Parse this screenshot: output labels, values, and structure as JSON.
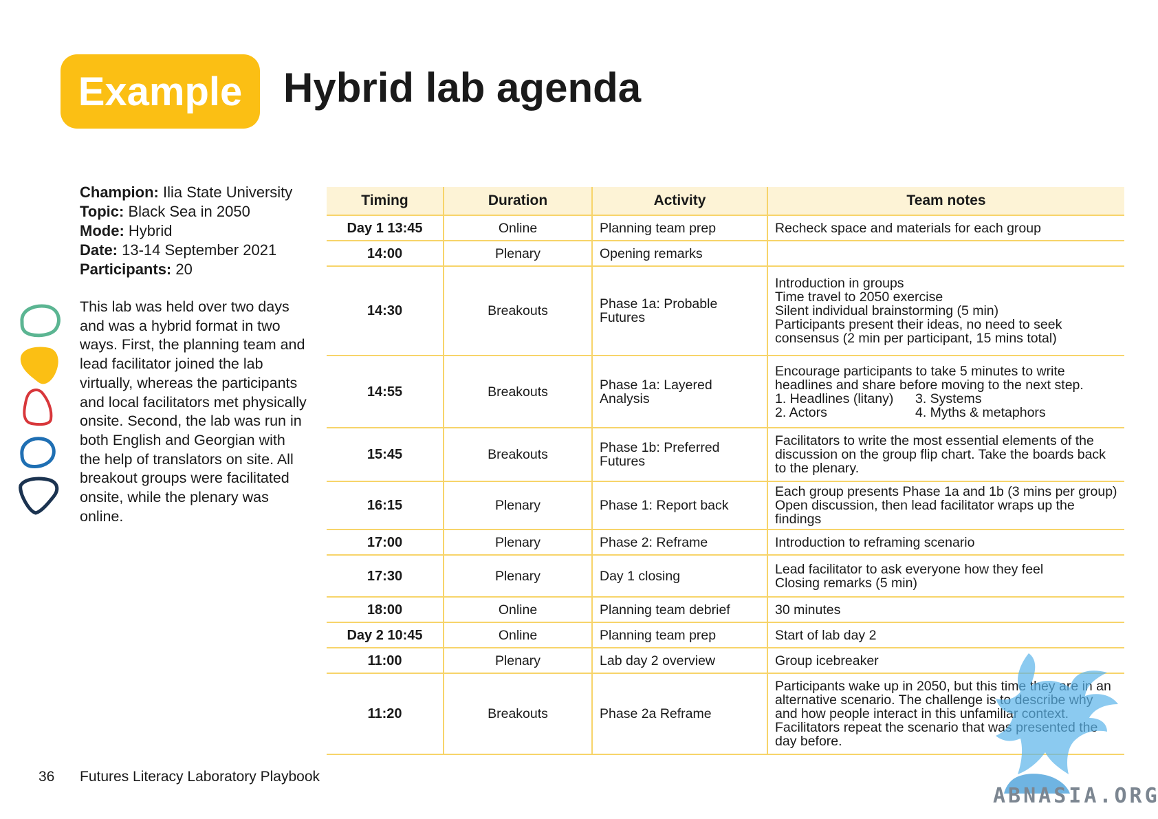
{
  "header": {
    "badge": "Example",
    "title": "Hybrid lab agenda"
  },
  "meta": [
    {
      "label": "Champion:",
      "value": " Ilia State University"
    },
    {
      "label": "Topic:",
      "value": " Black Sea in 2050"
    },
    {
      "label": "Mode:",
      "value": " Hybrid"
    },
    {
      "label": "Date:",
      "value": " 13-14 September 2021"
    },
    {
      "label": "Participants:",
      "value": " 20"
    }
  ],
  "description": "This lab was held over two days and was a hybrid format in two ways. First, the planning team and lead facilitator joined the lab virtually, whereas the participants and local facilitators met physically onsite. Second, the lab was run in both English and Georgian with the help of translators on site. All breakout groups were facilitated onsite, while the plenary was online.",
  "table": {
    "headers": [
      "Timing",
      "Duration",
      "Activity",
      "Team notes"
    ],
    "rows": [
      {
        "timing": "Day 1 13:45",
        "duration": "Online",
        "activity": "Planning team prep",
        "notes": [
          "Recheck space and materials for each group"
        ]
      },
      {
        "timing": "14:00",
        "duration": "Plenary",
        "activity": "Opening remarks",
        "notes": [
          ""
        ]
      },
      {
        "timing": "14:30",
        "duration": "Breakouts",
        "activity": "Phase 1a: Probable Futures",
        "notes": [
          "Introduction in groups",
          "Time travel to 2050 exercise",
          "Silent individual brainstorming (5 min)",
          "Participants present their ideas, no need to seek consensus (2 min per participant, 15 mins total)"
        ]
      },
      {
        "timing": "14:55",
        "duration": "Breakouts",
        "activity": "Phase 1a: Layered Analysis",
        "notes": [
          "Encourage participants to take 5 minutes to write headlines and share before moving to the next step."
        ],
        "list": [
          [
            "1. Headlines (litany)",
            "3. Systems"
          ],
          [
            "2. Actors",
            "4. Myths & metaphors"
          ]
        ]
      },
      {
        "timing": "15:45",
        "duration": "Breakouts",
        "activity": "Phase 1b: Preferred Futures",
        "notes": [
          "Facilitators to write the most essential elements of the discussion on the group flip chart. Take the boards back to the plenary."
        ]
      },
      {
        "timing": "16:15",
        "duration": "Plenary",
        "activity": "Phase 1: Report back",
        "notes": [
          "Each group presents Phase 1a and 1b (3 mins per group)",
          "Open discussion, then lead facilitator wraps up the findings"
        ]
      },
      {
        "timing": "17:00",
        "duration": "Plenary",
        "activity": "Phase 2: Reframe",
        "notes": [
          "Introduction to reframing scenario"
        ]
      },
      {
        "timing": "17:30",
        "duration": "Plenary",
        "activity": "Day 1 closing",
        "notes": [
          "Lead facilitator to ask everyone how they feel",
          "Closing remarks (5 min)"
        ]
      },
      {
        "timing": "18:00",
        "duration": "Online",
        "activity": "Planning team debrief",
        "notes": [
          "30 minutes"
        ]
      },
      {
        "timing": "Day 2 10:45",
        "duration": "Online",
        "activity": "Planning team prep",
        "notes": [
          "Start of lab day 2"
        ]
      },
      {
        "timing": "11:00",
        "duration": "Plenary",
        "activity": "Lab day 2 overview",
        "notes": [
          "Group icebreaker"
        ]
      },
      {
        "timing": "11:20",
        "duration": "Breakouts",
        "activity": "Phase 2a Reframe",
        "notes": [
          "Participants wake up in 2050, but this time they are in an alternative scenario. The challenge is to describe why and how people interact in this unfamiliar context.",
          "Facilitators repeat the scenario that was presented the day before."
        ]
      }
    ]
  },
  "footer": {
    "page": "36",
    "title": "Futures Literacy Laboratory Playbook"
  },
  "watermark": "ABNASIA.ORG",
  "colors": {
    "accent": "#fbbf14",
    "rule": "#f7d46a",
    "header_bg": "#fdf3d6",
    "shape_green": "#5bb592",
    "shape_yellow": "#fbbf14",
    "shape_red": "#d8373b",
    "shape_blue": "#1f6fb3",
    "shape_navy": "#1b3350"
  }
}
